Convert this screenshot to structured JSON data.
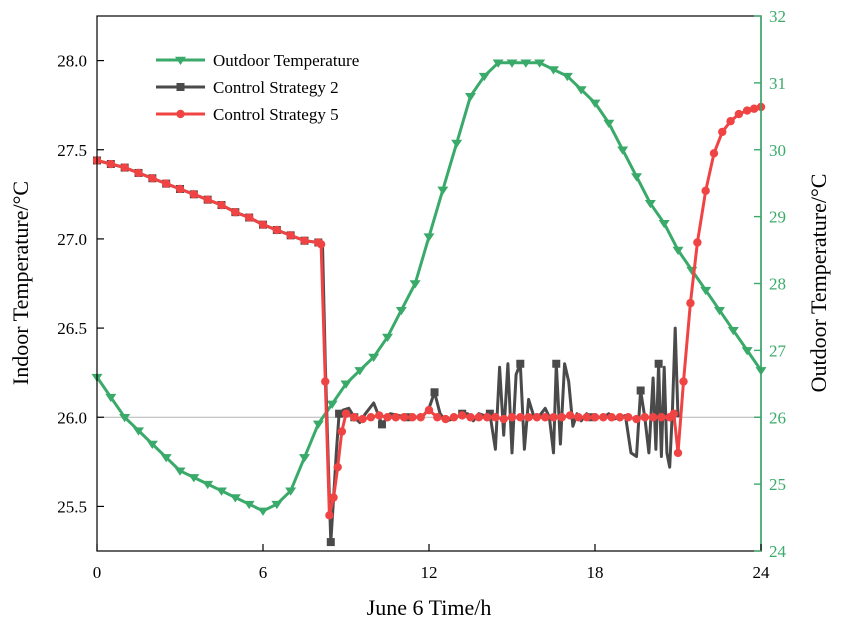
{
  "chart_data": {
    "type": "line",
    "xlabel": "June 6 Time/h",
    "ylabel_left": "Indoor Temperature/°C",
    "ylabel_right": "Outdoor Temperature/°C",
    "xlim": [
      0,
      24
    ],
    "ylim_left": [
      25.25,
      28.25
    ],
    "ylim_right": [
      24,
      32
    ],
    "x_ticks": [
      "0",
      "6",
      "12",
      "18",
      "24"
    ],
    "y_ticks_left": [
      "25.5",
      "26.0",
      "26.5",
      "27.0",
      "27.5",
      "28.0"
    ],
    "y_ticks_right": [
      "24",
      "25",
      "26",
      "27",
      "28",
      "29",
      "30",
      "31",
      "32"
    ],
    "reference_line_left": 26.0,
    "legend_position": "top-left",
    "colors": {
      "control_strategy_2": "#4a4a4a",
      "control_strategy_5": "#f04444",
      "outdoor_temperature": "#3aaa6a",
      "right_axis": "#3aaa6a"
    },
    "series": [
      {
        "name": "Control Strategy 2",
        "axis": "left",
        "marker": "square",
        "x": [
          0,
          0.5,
          1,
          1.5,
          2,
          2.5,
          3,
          3.5,
          4,
          4.5,
          5,
          5.5,
          6,
          6.5,
          7,
          7.5,
          8.0,
          8.15,
          8.25,
          8.35,
          8.45,
          8.55,
          8.65,
          8.75,
          8.9,
          9.1,
          9.3,
          9.5,
          9.7,
          10.0,
          10.3,
          10.6,
          10.9,
          11.2,
          11.5,
          11.8,
          12.0,
          12.2,
          12.4,
          12.6,
          12.9,
          13.2,
          13.4,
          13.6,
          13.8,
          14.0,
          14.2,
          14.4,
          14.55,
          14.7,
          14.85,
          15.0,
          15.15,
          15.3,
          15.45,
          15.6,
          15.8,
          16.0,
          16.2,
          16.35,
          16.5,
          16.6,
          16.75,
          16.9,
          17.05,
          17.2,
          17.35,
          17.5,
          17.7,
          17.9,
          18.1,
          18.3,
          18.5,
          18.7,
          18.9,
          19.1,
          19.3,
          19.5,
          19.65,
          19.8,
          19.95,
          20.1,
          20.2,
          20.3,
          20.4,
          20.5,
          20.6,
          20.7,
          20.8,
          20.9,
          21.0
        ],
        "y": [
          27.44,
          27.42,
          27.4,
          27.37,
          27.34,
          27.31,
          27.28,
          27.25,
          27.22,
          27.19,
          27.15,
          27.12,
          27.08,
          27.05,
          27.02,
          26.99,
          26.98,
          26.97,
          26.3,
          25.8,
          25.3,
          25.55,
          25.8,
          26.02,
          26.04,
          26.05,
          26.0,
          25.97,
          26.02,
          26.08,
          25.96,
          26.02,
          26.01,
          26.0,
          26.0,
          26.01,
          26.05,
          26.14,
          26.02,
          25.98,
          25.99,
          26.02,
          26.02,
          25.98,
          26.02,
          26.01,
          26.02,
          25.82,
          26.28,
          25.9,
          26.3,
          25.8,
          26.24,
          26.3,
          25.82,
          26.1,
          26.0,
          26.01,
          26.05,
          26.0,
          25.8,
          26.3,
          25.85,
          26.3,
          26.2,
          25.95,
          26.02,
          25.98,
          26.02,
          26.0,
          26.0,
          26.0,
          26.02,
          25.99,
          26.0,
          26.01,
          25.8,
          25.78,
          26.15,
          26.0,
          25.8,
          26.22,
          25.82,
          26.3,
          25.78,
          26.28,
          25.8,
          25.72,
          26.05,
          26.5,
          26.0
        ]
      },
      {
        "name": "Control Strategy 5",
        "axis": "left",
        "marker": "circle",
        "x": [
          0,
          0.5,
          1,
          1.5,
          2,
          2.5,
          3,
          3.5,
          4,
          4.5,
          5,
          5.5,
          6,
          6.5,
          7,
          7.5,
          8.0,
          8.1,
          8.25,
          8.4,
          8.55,
          8.7,
          8.85,
          9.0,
          9.3,
          9.6,
          9.9,
          10.2,
          10.5,
          10.8,
          11.1,
          11.4,
          11.7,
          12.0,
          12.3,
          12.6,
          12.9,
          13.2,
          13.5,
          13.8,
          14.1,
          14.4,
          14.7,
          15.0,
          15.3,
          15.6,
          15.9,
          16.2,
          16.5,
          16.8,
          17.1,
          17.4,
          17.7,
          18.0,
          18.3,
          18.6,
          18.9,
          19.2,
          19.5,
          19.8,
          20.1,
          20.4,
          20.7,
          20.85,
          21.0,
          21.2,
          21.45,
          21.7,
          22.0,
          22.3,
          22.6,
          22.9,
          23.2,
          23.5,
          23.75,
          24.0
        ],
        "y": [
          27.44,
          27.42,
          27.4,
          27.37,
          27.34,
          27.31,
          27.28,
          27.25,
          27.22,
          27.19,
          27.15,
          27.12,
          27.08,
          27.05,
          27.02,
          26.99,
          26.98,
          26.97,
          26.2,
          25.45,
          25.55,
          25.72,
          25.92,
          26.02,
          26.0,
          25.99,
          26.0,
          26.01,
          26.0,
          26.0,
          26.0,
          26.0,
          26.0,
          26.04,
          26.0,
          25.99,
          26.0,
          26.01,
          26.0,
          26.0,
          26.0,
          26.0,
          25.99,
          26.0,
          26.0,
          26.0,
          26.0,
          26.0,
          26.0,
          26.0,
          26.01,
          26.0,
          26.0,
          26.0,
          26.0,
          26.0,
          26.0,
          26.0,
          25.99,
          26.0,
          26.0,
          26.0,
          26.0,
          26.02,
          25.8,
          26.2,
          26.64,
          26.98,
          27.27,
          27.48,
          27.6,
          27.66,
          27.7,
          27.72,
          27.73,
          27.74
        ]
      },
      {
        "name": "Outdoor Temperature",
        "axis": "right",
        "marker": "triangle-down",
        "x": [
          0,
          0.5,
          1,
          1.5,
          2,
          2.5,
          3,
          3.5,
          4,
          4.5,
          5,
          5.5,
          6,
          6.5,
          7,
          7.5,
          8,
          8.5,
          9,
          9.5,
          10,
          10.5,
          11,
          11.5,
          12,
          12.5,
          13,
          13.5,
          14,
          14.5,
          15,
          15.5,
          16,
          16.5,
          17,
          17.5,
          18,
          18.5,
          19,
          19.5,
          20,
          20.5,
          21,
          21.5,
          22,
          22.5,
          23,
          23.5,
          24
        ],
        "y": [
          26.6,
          26.3,
          26.0,
          25.8,
          25.6,
          25.4,
          25.2,
          25.1,
          25.0,
          24.9,
          24.8,
          24.7,
          24.6,
          24.7,
          24.9,
          25.4,
          25.9,
          26.2,
          26.5,
          26.7,
          26.9,
          27.2,
          27.6,
          28.0,
          28.7,
          29.4,
          30.1,
          30.8,
          31.1,
          31.3,
          31.3,
          31.3,
          31.3,
          31.2,
          31.1,
          30.9,
          30.7,
          30.4,
          30.0,
          29.6,
          29.2,
          28.9,
          28.5,
          28.2,
          27.9,
          27.6,
          27.3,
          27.0,
          26.7
        ]
      }
    ]
  }
}
